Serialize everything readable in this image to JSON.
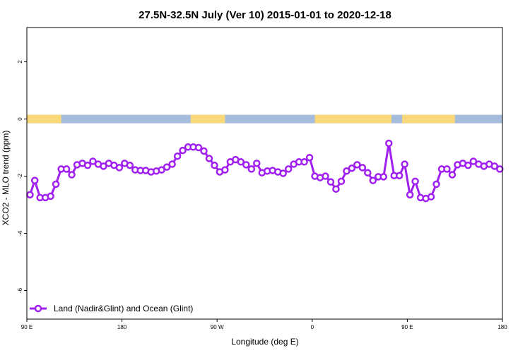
{
  "chart_data": {
    "type": "line",
    "title": "27.5N-32.5N July (Ver 10)   2015-01-01 to 2020-12-18",
    "xlabel": "Longitude (deg E)",
    "ylabel": "XCO2 - MLO trend (ppm)",
    "xlim": [
      90,
      270
    ],
    "ylim": [
      -7.0,
      3.2
    ],
    "x_ticks": [
      {
        "value": 90,
        "label": "90 E"
      },
      {
        "value": 126,
        "label": "180"
      },
      {
        "value": 162,
        "label": "90 W"
      },
      {
        "value": 198,
        "label": "0"
      },
      {
        "value": 234,
        "label": "90 E"
      },
      {
        "value": 270,
        "label": "180"
      }
    ],
    "y_ticks": [
      {
        "value": 2,
        "label": "2"
      },
      {
        "value": 0,
        "label": "0"
      },
      {
        "value": -2,
        "label": "-2"
      },
      {
        "value": -4,
        "label": "-4"
      },
      {
        "value": -6,
        "label": "-6"
      }
    ],
    "grid": false,
    "legend_position": "bottom-left",
    "series_color": "#a020f0",
    "land_color": "#f9d87a",
    "ocean_color": "#a6bcdc",
    "surface_band": {
      "y_value": 0,
      "land_segments": [
        [
          90,
          103
        ],
        [
          152,
          165
        ],
        [
          199,
          228
        ],
        [
          232,
          252
        ]
      ]
    },
    "series": [
      {
        "name": "Land (Nadir&Glint) and Ocean (Glint)",
        "x": [
          91.2,
          93,
          95,
          97,
          99,
          101,
          103,
          105,
          107,
          109,
          111,
          113,
          115,
          117,
          119,
          121,
          123,
          125,
          127,
          129,
          131,
          133,
          135,
          137,
          139,
          141,
          143,
          145,
          147,
          149,
          151,
          153,
          155,
          157,
          159,
          161,
          163,
          165,
          167,
          169,
          171,
          173,
          175,
          177,
          179,
          181,
          183,
          185,
          187,
          189,
          191,
          193,
          195,
          197,
          199,
          201,
          203,
          205,
          207,
          209,
          211,
          213,
          215,
          217,
          219,
          221,
          223,
          225,
          227,
          229,
          231,
          233,
          235,
          237,
          239,
          241,
          243,
          245,
          247,
          249,
          251,
          253,
          255,
          257,
          259,
          261,
          263,
          265,
          267,
          269
        ],
        "y": [
          -2.65,
          -2.15,
          -2.75,
          -2.75,
          -2.7,
          -2.28,
          -1.75,
          -1.75,
          -1.95,
          -1.6,
          -1.55,
          -1.62,
          -1.48,
          -1.58,
          -1.65,
          -1.55,
          -1.62,
          -1.7,
          -1.55,
          -1.62,
          -1.78,
          -1.8,
          -1.8,
          -1.85,
          -1.82,
          -1.78,
          -1.68,
          -1.58,
          -1.3,
          -1.1,
          -0.98,
          -0.98,
          -1.0,
          -1.12,
          -1.38,
          -1.62,
          -1.85,
          -1.78,
          -1.5,
          -1.42,
          -1.5,
          -1.6,
          -1.75,
          -1.55,
          -1.88,
          -1.82,
          -1.8,
          -1.85,
          -1.9,
          -1.75,
          -1.58,
          -1.5,
          -1.5,
          -1.35,
          -2.0,
          -2.05,
          -2.0,
          -2.2,
          -2.45,
          -2.18,
          -1.82,
          -1.72,
          -1.6,
          -1.7,
          -1.88,
          -2.15,
          -2.02,
          -2.02,
          -0.85,
          -1.98,
          -1.98,
          -1.58,
          -2.65,
          -2.18,
          -2.75,
          -2.78,
          -2.72,
          -2.28,
          -1.75,
          -1.75,
          -1.95,
          -1.6,
          -1.55,
          -1.62,
          -1.48,
          -1.58,
          -1.65,
          -1.58,
          -1.65,
          -1.75
        ]
      }
    ]
  }
}
